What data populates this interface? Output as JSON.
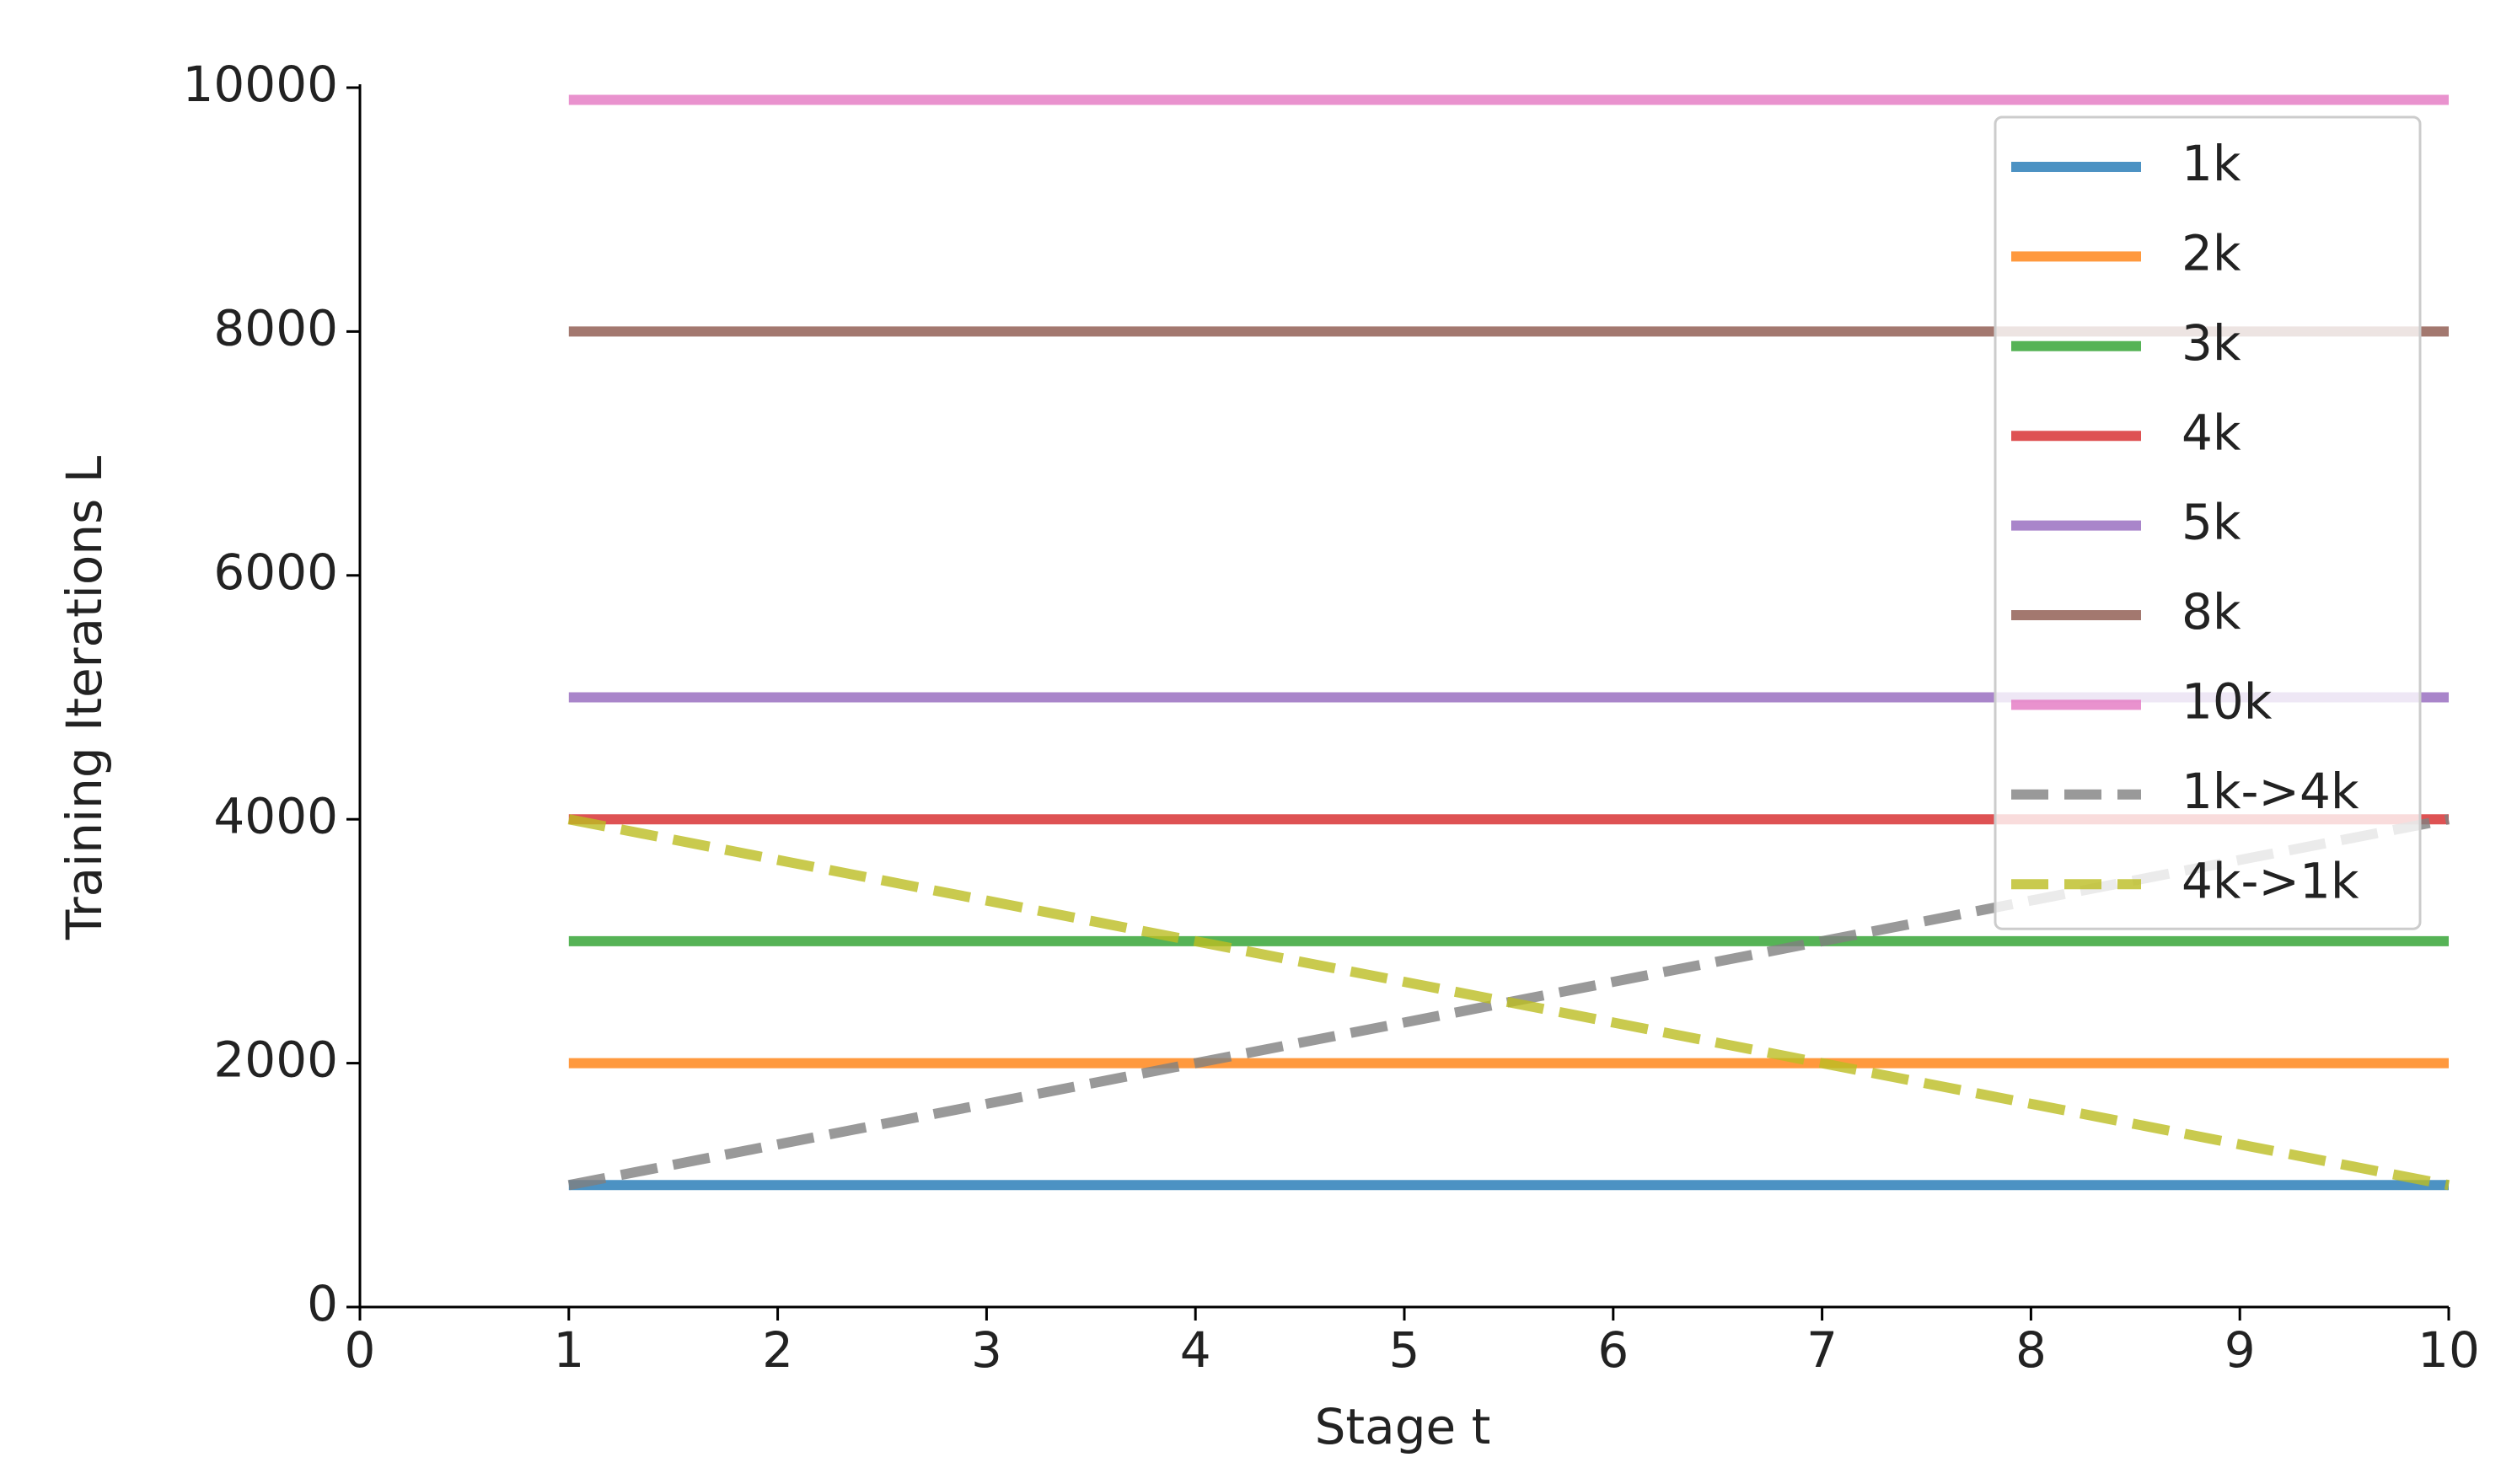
{
  "chart_data": {
    "type": "line",
    "x_label": "Stage t",
    "y_label": "Training Iterations L",
    "x": [
      1,
      2,
      3,
      4,
      5,
      6,
      7,
      8,
      9,
      10
    ],
    "series": [
      {
        "name": "1k",
        "color": "#1f77b4",
        "values": [
          1000,
          1000,
          1000,
          1000,
          1000,
          1000,
          1000,
          1000,
          1000,
          1000
        ]
      },
      {
        "name": "2k",
        "color": "#ff7f0e",
        "values": [
          2000,
          2000,
          2000,
          2000,
          2000,
          2000,
          2000,
          2000,
          2000,
          2000
        ]
      },
      {
        "name": "3k",
        "color": "#2ca02c",
        "values": [
          3000,
          3000,
          3000,
          3000,
          3000,
          3000,
          3000,
          3000,
          3000,
          3000
        ]
      },
      {
        "name": "4k",
        "color": "#d62728",
        "values": [
          4000,
          4000,
          4000,
          4000,
          4000,
          4000,
          4000,
          4000,
          4000,
          4000
        ]
      },
      {
        "name": "5k",
        "color": "#9467bd",
        "values": [
          5000,
          5000,
          5000,
          5000,
          5000,
          5000,
          5000,
          5000,
          5000,
          5000
        ]
      },
      {
        "name": "8k",
        "color": "#8c564b",
        "values": [
          8000,
          8000,
          8000,
          8000,
          8000,
          8000,
          8000,
          8000,
          8000,
          8000
        ]
      },
      {
        "name": "10k",
        "color": "#e377c2",
        "values": [
          9900,
          9900,
          9900,
          9900,
          9900,
          9900,
          9900,
          9900,
          9900,
          9900
        ]
      },
      {
        "name": "1k->4k",
        "color": "#7f7f7f",
        "dashed": true,
        "values": [
          1000,
          1333.3,
          1666.7,
          2000,
          2333.3,
          2666.7,
          3000,
          3333.3,
          3666.7,
          4000
        ]
      },
      {
        "name": "4k->1k",
        "color": "#bcbd22",
        "dashed": true,
        "values": [
          4000,
          3666.7,
          3333.3,
          3000,
          2666.7,
          2333.3,
          2000,
          1666.7,
          1333.3,
          1000
        ]
      }
    ],
    "xlim": [
      0,
      10
    ],
    "xticks": [
      0,
      1,
      2,
      3,
      4,
      5,
      6,
      7,
      8,
      9,
      10
    ],
    "ylim": [
      0,
      10000
    ],
    "yticks": [
      0,
      2000,
      4000,
      6000,
      8000,
      10000
    ],
    "legend": "upper right",
    "grid": false
  }
}
